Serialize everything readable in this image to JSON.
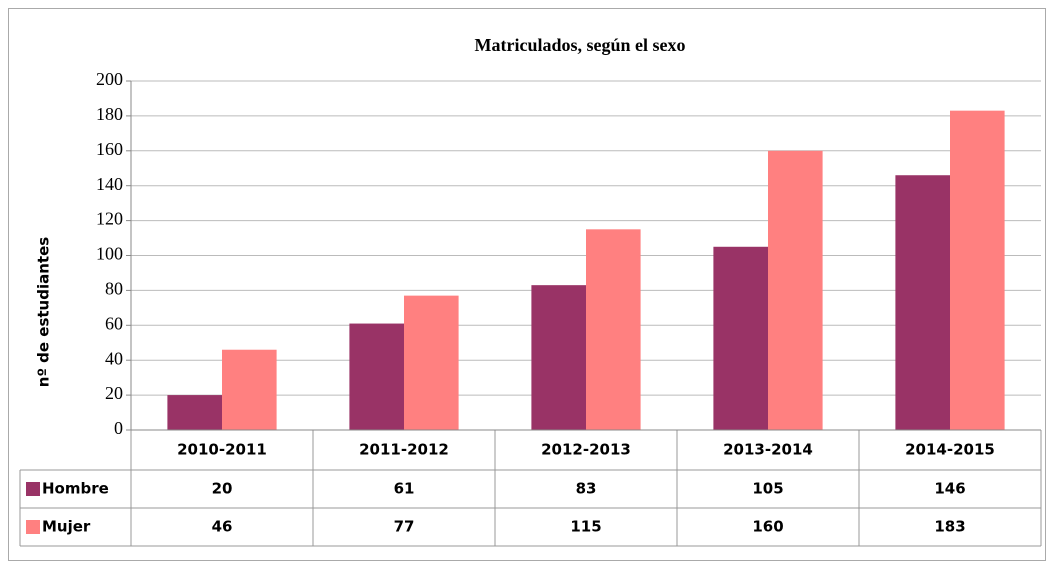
{
  "chart_data": {
    "type": "bar",
    "title": "Matriculados, según el sexo",
    "y_label": "nº de estudiantes",
    "categories": [
      "2010-2011",
      "2011-2012",
      "2012-2013",
      "2013-2014",
      "2014-2015"
    ],
    "series": [
      {
        "name": "Hombre",
        "color": "#993366",
        "values": [
          20,
          61,
          83,
          105,
          146
        ]
      },
      {
        "name": "Mujer",
        "color": "#ff8080",
        "values": [
          46,
          77,
          115,
          160,
          183
        ]
      }
    ],
    "ylim": [
      0,
      200
    ],
    "yticks": [
      0,
      20,
      40,
      60,
      80,
      100,
      120,
      140,
      160,
      180,
      200
    ],
    "grid": true
  }
}
